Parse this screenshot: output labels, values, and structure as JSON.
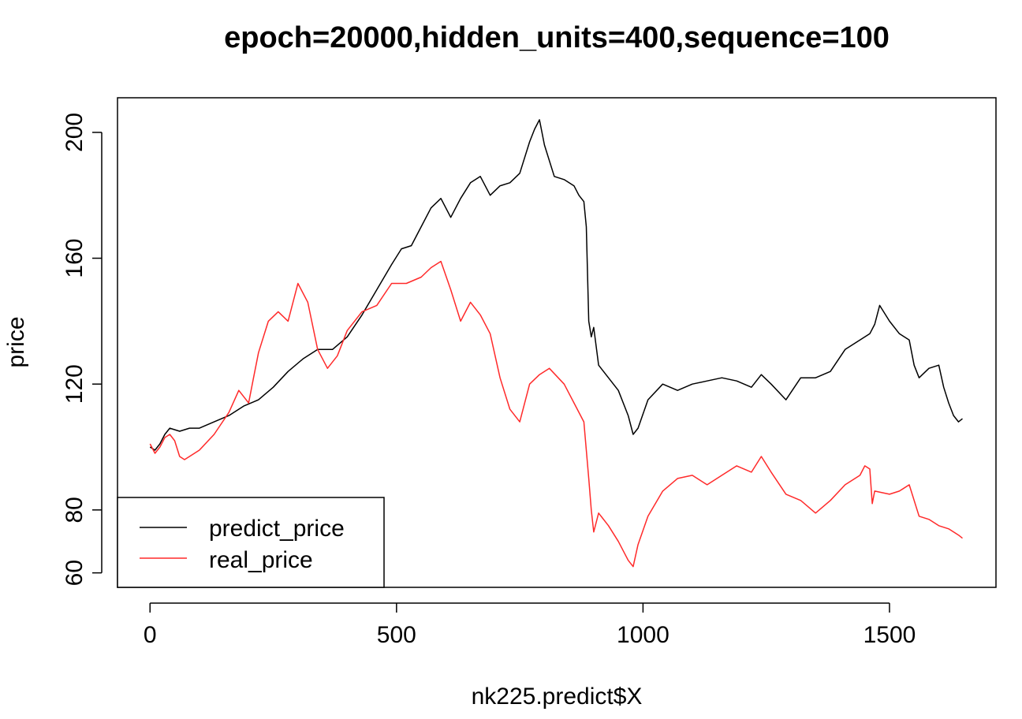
{
  "chart_data": {
    "type": "line",
    "title": "epoch=20000,hidden_units=400,sequence=100",
    "xlabel": "nk225.predict$X",
    "ylabel": "price",
    "xlim": [
      -66,
      1716
    ],
    "ylim": [
      55.4,
      211
    ],
    "xticks": [
      0,
      500,
      1000,
      1500
    ],
    "yticks": [
      60,
      80,
      120,
      160,
      200
    ],
    "grid": false,
    "legend_position": "bottom-left",
    "series": [
      {
        "name": "predict_price",
        "color": "#000000",
        "x": [
          0,
          10,
          20,
          30,
          40,
          60,
          80,
          100,
          130,
          160,
          190,
          220,
          250,
          280,
          310,
          340,
          370,
          400,
          430,
          460,
          490,
          510,
          530,
          550,
          570,
          590,
          610,
          630,
          650,
          670,
          690,
          710,
          730,
          750,
          770,
          780,
          790,
          800,
          820,
          840,
          860,
          870,
          880,
          885,
          890,
          895,
          900,
          910,
          930,
          950,
          970,
          980,
          990,
          1010,
          1040,
          1070,
          1100,
          1130,
          1160,
          1190,
          1220,
          1240,
          1260,
          1290,
          1320,
          1350,
          1380,
          1410,
          1440,
          1460,
          1470,
          1480,
          1500,
          1520,
          1540,
          1550,
          1560,
          1580,
          1600,
          1610,
          1620,
          1630,
          1640,
          1648
        ],
        "values": [
          100,
          99,
          101,
          104,
          106,
          105,
          106,
          106,
          108,
          110,
          113,
          115,
          119,
          124,
          128,
          131,
          131,
          135,
          142,
          150,
          158,
          163,
          164,
          170,
          176,
          179,
          173,
          179,
          184,
          186,
          180,
          183,
          184,
          187,
          197,
          201,
          204,
          196,
          186,
          185,
          183,
          180,
          178,
          170,
          140,
          135,
          138,
          126,
          122,
          118,
          110,
          104,
          106,
          115,
          120,
          118,
          120,
          121,
          122,
          121,
          119,
          123,
          120,
          115,
          122,
          122,
          124,
          131,
          134,
          136,
          139,
          145,
          140,
          136,
          134,
          126,
          122,
          125,
          126,
          119,
          114,
          110,
          108,
          109
        ]
      },
      {
        "name": "real_price",
        "color": "#ff2a2a",
        "x": [
          0,
          10,
          20,
          30,
          40,
          50,
          60,
          70,
          80,
          100,
          130,
          160,
          180,
          200,
          210,
          220,
          240,
          260,
          280,
          300,
          320,
          340,
          360,
          380,
          400,
          430,
          460,
          490,
          520,
          550,
          570,
          590,
          610,
          630,
          650,
          670,
          690,
          710,
          730,
          750,
          770,
          790,
          810,
          840,
          860,
          880,
          890,
          895,
          900,
          910,
          930,
          950,
          970,
          980,
          990,
          1010,
          1040,
          1070,
          1100,
          1130,
          1160,
          1190,
          1220,
          1240,
          1260,
          1290,
          1320,
          1350,
          1380,
          1410,
          1440,
          1450,
          1460,
          1465,
          1470,
          1500,
          1520,
          1540,
          1560,
          1580,
          1600,
          1620,
          1640,
          1648
        ],
        "values": [
          101,
          98,
          100,
          103,
          104,
          102,
          97,
          96,
          97,
          99,
          104,
          111,
          118,
          114,
          122,
          130,
          140,
          143,
          140,
          152,
          146,
          131,
          125,
          129,
          137,
          143,
          145,
          152,
          152,
          154,
          157,
          159,
          150,
          140,
          146,
          142,
          136,
          122,
          112,
          108,
          120,
          123,
          125,
          120,
          114,
          108,
          90,
          80,
          73,
          79,
          75,
          70,
          64,
          62,
          69,
          78,
          86,
          90,
          91,
          88,
          91,
          94,
          92,
          97,
          92,
          85,
          83,
          79,
          83,
          88,
          91,
          94,
          93,
          82,
          86,
          85,
          86,
          88,
          78,
          77,
          75,
          74,
          72,
          71
        ]
      }
    ]
  }
}
